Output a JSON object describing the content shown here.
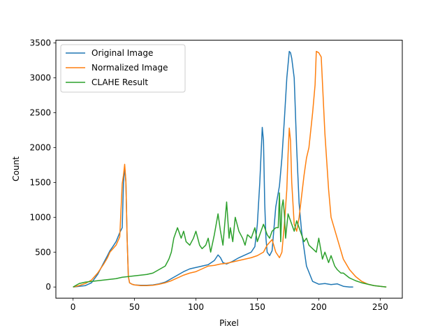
{
  "chart_data": {
    "type": "line",
    "title": "",
    "xlabel": "Pixel",
    "ylabel": "Count",
    "xlim": [
      -14,
      268
    ],
    "ylim": [
      -160,
      3540
    ],
    "xticks": [
      0,
      50,
      100,
      150,
      200,
      250
    ],
    "yticks": [
      0,
      500,
      1000,
      1500,
      2000,
      2500,
      3000,
      3500
    ],
    "grid": false,
    "legend_position": "top-left",
    "series": [
      {
        "name": "Original Image",
        "color": "#1f77b4",
        "x": [
          0,
          5,
          10,
          15,
          20,
          25,
          28,
          30,
          32,
          35,
          38,
          40,
          41,
          42,
          43,
          44,
          45,
          46,
          48,
          50,
          55,
          60,
          65,
          70,
          75,
          80,
          85,
          90,
          95,
          100,
          105,
          110,
          115,
          118,
          120,
          122,
          125,
          130,
          135,
          140,
          145,
          148,
          150,
          152,
          154,
          155,
          156,
          157,
          158,
          160,
          162,
          165,
          168,
          170,
          172,
          174,
          176,
          177,
          178,
          180,
          182,
          184,
          186,
          188,
          190,
          195,
          200,
          205,
          210,
          215,
          220,
          225,
          228
        ],
        "values": [
          0,
          10,
          20,
          60,
          180,
          350,
          450,
          520,
          570,
          650,
          780,
          850,
          1480,
          1720,
          1500,
          700,
          150,
          60,
          40,
          30,
          25,
          25,
          30,
          45,
          70,
          120,
          170,
          220,
          260,
          280,
          300,
          320,
          380,
          460,
          420,
          350,
          330,
          370,
          420,
          460,
          500,
          580,
          900,
          1500,
          2290,
          2100,
          1200,
          700,
          500,
          450,
          520,
          1150,
          1450,
          1850,
          2400,
          3000,
          3380,
          3360,
          3280,
          3000,
          2000,
          1200,
          800,
          550,
          300,
          80,
          40,
          50,
          35,
          45,
          10,
          0,
          0
        ]
      },
      {
        "name": "Normalized Image",
        "color": "#ff7f0e",
        "x": [
          0,
          5,
          10,
          15,
          20,
          25,
          28,
          30,
          32,
          35,
          38,
          40,
          41,
          42,
          43,
          44,
          45,
          46,
          48,
          50,
          55,
          60,
          65,
          70,
          75,
          80,
          85,
          90,
          95,
          100,
          105,
          110,
          115,
          120,
          125,
          130,
          135,
          140,
          145,
          150,
          155,
          158,
          162,
          165,
          168,
          170,
          172,
          174,
          175,
          176,
          177,
          178,
          180,
          182,
          184,
          186,
          188,
          190,
          192,
          195,
          197,
          198,
          200,
          202,
          205,
          208,
          210,
          215,
          220,
          225,
          230,
          235,
          240,
          245,
          250,
          255
        ],
        "values": [
          0,
          20,
          50,
          100,
          200,
          330,
          420,
          500,
          540,
          600,
          720,
          1480,
          1600,
          1760,
          1520,
          700,
          150,
          60,
          40,
          30,
          20,
          20,
          25,
          40,
          60,
          90,
          130,
          170,
          200,
          220,
          260,
          300,
          310,
          330,
          340,
          360,
          380,
          400,
          420,
          450,
          500,
          600,
          680,
          500,
          420,
          500,
          900,
          1400,
          1900,
          2280,
          2100,
          1500,
          900,
          800,
          1000,
          1300,
          1600,
          1850,
          2000,
          2500,
          2900,
          3380,
          3360,
          3300,
          2200,
          1400,
          1000,
          700,
          400,
          250,
          150,
          80,
          40,
          20,
          10,
          0
        ]
      },
      {
        "name": "CLAHE Result",
        "color": "#2ca02c",
        "x": [
          0,
          5,
          10,
          15,
          20,
          25,
          30,
          35,
          40,
          45,
          50,
          55,
          60,
          65,
          70,
          75,
          78,
          80,
          82,
          85,
          88,
          90,
          92,
          95,
          98,
          100,
          103,
          105,
          108,
          110,
          112,
          115,
          118,
          120,
          122,
          125,
          127,
          128,
          130,
          132,
          135,
          138,
          140,
          142,
          145,
          148,
          150,
          152,
          155,
          158,
          160,
          162,
          165,
          167,
          168,
          169,
          170,
          171,
          172,
          173,
          175,
          176,
          178,
          180,
          182,
          185,
          188,
          190,
          192,
          195,
          198,
          200,
          203,
          205,
          208,
          210,
          213,
          215,
          218,
          220,
          225,
          230,
          235,
          240,
          245,
          250,
          255
        ],
        "values": [
          0,
          50,
          70,
          80,
          90,
          100,
          110,
          120,
          140,
          150,
          160,
          170,
          180,
          200,
          250,
          300,
          400,
          500,
          700,
          850,
          700,
          800,
          650,
          600,
          700,
          800,
          600,
          550,
          600,
          700,
          500,
          750,
          1050,
          800,
          600,
          1220,
          700,
          850,
          650,
          1000,
          800,
          700,
          600,
          750,
          700,
          850,
          650,
          750,
          900,
          750,
          700,
          800,
          850,
          850,
          1350,
          650,
          1150,
          1250,
          1050,
          700,
          1050,
          1000,
          900,
          800,
          950,
          800,
          650,
          700,
          600,
          550,
          500,
          700,
          400,
          500,
          350,
          450,
          300,
          250,
          200,
          200,
          130,
          90,
          60,
          40,
          20,
          10,
          0
        ]
      }
    ]
  }
}
